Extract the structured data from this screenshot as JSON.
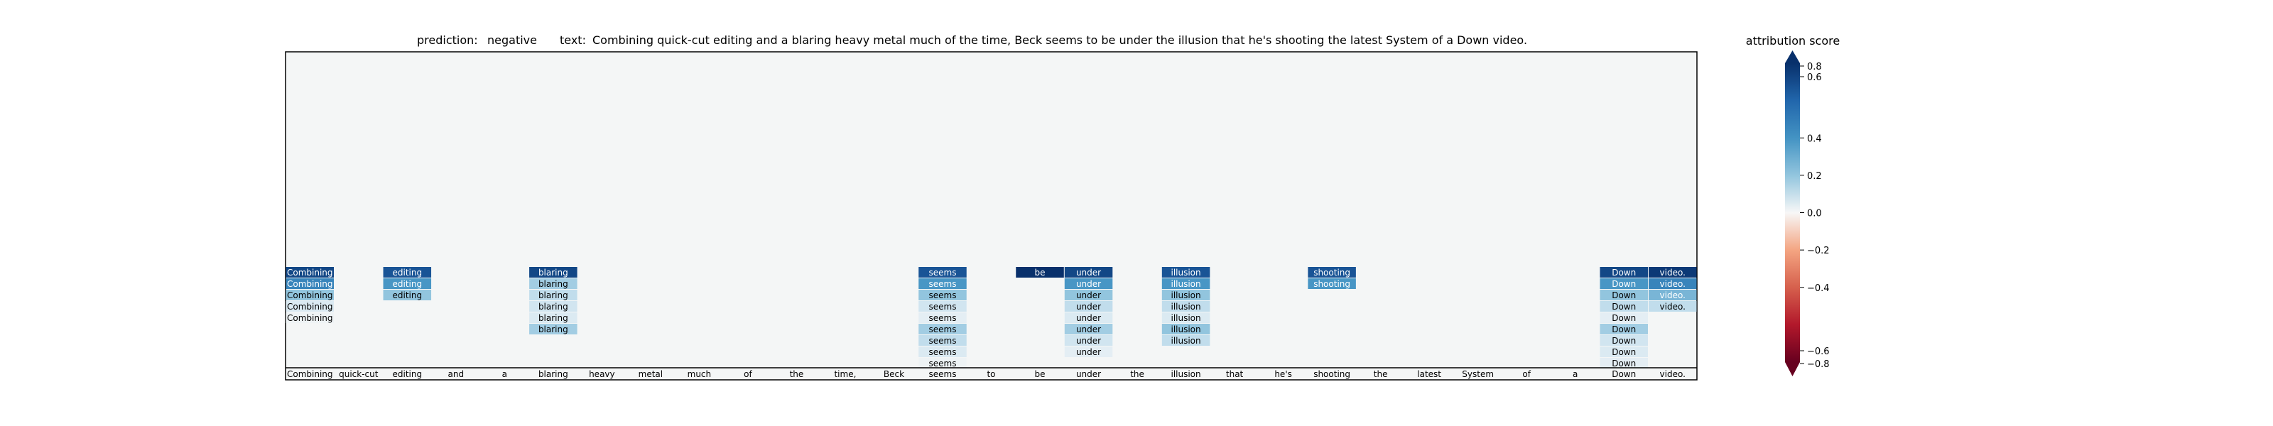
{
  "chart_data": {
    "type": "heatmap",
    "title_prediction_label": "prediction:",
    "title_prediction_value": "negative",
    "title_text_label": "text:",
    "title_text_value": "Combining quick-cut editing and a blaring heavy metal much of the time, Beck seems to be under the illusion that he's shooting the latest System of a Down video.",
    "colorbar": {
      "label": "attribution score",
      "range": [
        -0.8,
        0.8
      ],
      "ticks": [
        {
          "value": 0.8,
          "label": "0.8"
        },
        {
          "value": 0.6,
          "label": "0.6"
        },
        {
          "value": 0.4,
          "label": "0.4"
        },
        {
          "value": 0.2,
          "label": "0.2"
        },
        {
          "value": 0.0,
          "label": "0.0"
        },
        {
          "value": -0.2,
          "label": "−0.2"
        },
        {
          "value": -0.4,
          "label": "−0.4"
        },
        {
          "value": -0.6,
          "label": "−0.6"
        },
        {
          "value": -0.8,
          "label": "−0.8"
        }
      ],
      "colors": {
        "positive": "#08306b",
        "neutral": "#f7f7f7",
        "negative": "#67001f"
      }
    },
    "background_color": "#f4f6f6",
    "tokens": [
      "Combining",
      "quick-cut",
      "editing",
      "and",
      "a",
      "blaring",
      "heavy",
      "metal",
      "much",
      "of",
      "the",
      "time,",
      "Beck",
      "seems",
      "to",
      "be",
      "under",
      "the",
      "illusion",
      "that",
      "he's",
      "shooting",
      "the",
      "latest",
      "System",
      "of",
      "a",
      "Down",
      "video."
    ],
    "columns": [
      {
        "token": "Combining",
        "scores": [
          0.75,
          0.6,
          0.4,
          0.15,
          0.05
        ]
      },
      {
        "token": "quick-cut",
        "scores": []
      },
      {
        "token": "editing",
        "scores": [
          0.72,
          0.55,
          0.4
        ]
      },
      {
        "token": "and",
        "scores": []
      },
      {
        "token": "a",
        "scores": []
      },
      {
        "token": "blaring",
        "scores": [
          0.75,
          0.35,
          0.25,
          0.2,
          0.15,
          0.35
        ]
      },
      {
        "token": "heavy",
        "scores": []
      },
      {
        "token": "metal",
        "scores": []
      },
      {
        "token": "much",
        "scores": []
      },
      {
        "token": "of",
        "scores": []
      },
      {
        "token": "the",
        "scores": []
      },
      {
        "token": "time,",
        "scores": []
      },
      {
        "token": "Beck",
        "scores": []
      },
      {
        "token": "seems",
        "scores": [
          0.72,
          0.55,
          0.4,
          0.2,
          0.1,
          0.35,
          0.25,
          0.15,
          0.05
        ]
      },
      {
        "token": "to",
        "scores": []
      },
      {
        "token": "be",
        "scores": [
          0.8
        ]
      },
      {
        "token": "under",
        "scores": [
          0.75,
          0.55,
          0.4,
          0.25,
          0.15,
          0.35,
          0.2,
          0.1
        ]
      },
      {
        "token": "the",
        "scores": []
      },
      {
        "token": "illusion",
        "scores": [
          0.72,
          0.55,
          0.4,
          0.25,
          0.15,
          0.4,
          0.25
        ]
      },
      {
        "token": "that",
        "scores": []
      },
      {
        "token": "he's",
        "scores": []
      },
      {
        "token": "shooting",
        "scores": [
          0.72,
          0.55
        ]
      },
      {
        "token": "the",
        "scores": []
      },
      {
        "token": "latest",
        "scores": []
      },
      {
        "token": "System",
        "scores": []
      },
      {
        "token": "of",
        "scores": []
      },
      {
        "token": "a",
        "scores": []
      },
      {
        "token": "Down",
        "scores": [
          0.75,
          0.55,
          0.4,
          0.25,
          0.1,
          0.35,
          0.2,
          0.15,
          0.1
        ]
      },
      {
        "token": "video.",
        "scores": [
          0.78,
          0.6,
          0.45,
          0.25
        ]
      }
    ]
  }
}
